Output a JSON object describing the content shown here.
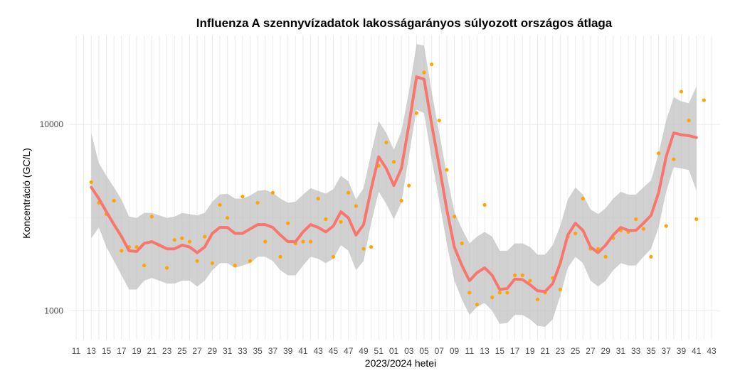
{
  "chart_data": {
    "type": "line",
    "title": "Influenza A szennyvízadatok lakosságarányos súlyozott országos átlaga",
    "xlabel": "2023/2024 hetei",
    "ylabel": "Koncentráció (GC/L)",
    "y_scale": "log10",
    "ylim": [
      700,
      30000
    ],
    "y_ticks": [
      1000,
      10000
    ],
    "y_tick_labels": [
      "1000",
      "10000"
    ],
    "grid": true,
    "x_tick_labels": [
      "11",
      "13",
      "15",
      "17",
      "19",
      "21",
      "23",
      "25",
      "27",
      "29",
      "31",
      "33",
      "35",
      "37",
      "39",
      "41",
      "43",
      "45",
      "47",
      "49",
      "51",
      "01",
      "03",
      "05",
      "07",
      "09",
      "11",
      "13",
      "15",
      "17",
      "19",
      "21",
      "23",
      "25",
      "27",
      "29",
      "31",
      "33",
      "35",
      "37",
      "39",
      "41",
      "43"
    ],
    "weeks": [
      "11",
      "12",
      "13",
      "14",
      "15",
      "16",
      "17",
      "18",
      "19",
      "20",
      "21",
      "22",
      "23",
      "24",
      "25",
      "26",
      "27",
      "28",
      "29",
      "30",
      "31",
      "32",
      "33",
      "34",
      "35",
      "36",
      "37",
      "38",
      "39",
      "40",
      "41",
      "42",
      "43",
      "44",
      "45",
      "46",
      "47",
      "48",
      "49",
      "50",
      "51",
      "52",
      "01",
      "02",
      "03",
      "04",
      "05",
      "06",
      "07",
      "08",
      "09",
      "10",
      "11",
      "12",
      "13",
      "14",
      "15",
      "16",
      "17",
      "18",
      "19",
      "20",
      "21",
      "22",
      "23",
      "24",
      "25",
      "26",
      "27",
      "28",
      "29",
      "30",
      "31",
      "32",
      "33",
      "34",
      "35",
      "36",
      "37",
      "38",
      "39",
      "40",
      "41",
      "42",
      "43"
    ],
    "series": [
      {
        "kind": "points",
        "color": "#FFA500",
        "points": [
          [
            "13",
            4900
          ],
          [
            "14",
            3800
          ],
          [
            "15",
            3300
          ],
          [
            "16",
            3900
          ],
          [
            "17",
            2100
          ],
          [
            "18",
            2200
          ],
          [
            "19",
            2200
          ],
          [
            "20",
            1750
          ],
          [
            "21",
            3200
          ],
          [
            "22",
            2250
          ],
          [
            "23",
            1700
          ],
          [
            "24",
            2400
          ],
          [
            "25",
            2450
          ],
          [
            "26",
            2350
          ],
          [
            "27",
            1850
          ],
          [
            "28",
            2500
          ],
          [
            "29",
            1800
          ],
          [
            "30",
            3700
          ],
          [
            "31",
            3150
          ],
          [
            "32",
            1750
          ],
          [
            "33",
            4100
          ],
          [
            "34",
            1850
          ],
          [
            "35",
            3800
          ],
          [
            "36",
            2350
          ],
          [
            "37",
            4300
          ],
          [
            "38",
            1950
          ],
          [
            "39",
            2950
          ],
          [
            "40",
            2300
          ],
          [
            "41",
            2350
          ],
          [
            "42",
            2350
          ],
          [
            "43",
            4000
          ],
          [
            "44",
            3100
          ],
          [
            "45",
            1950
          ],
          [
            "46",
            3000
          ],
          [
            "47",
            4300
          ],
          [
            "48",
            3650
          ],
          [
            "49",
            2150
          ],
          [
            "50",
            2200
          ],
          [
            "51",
            6000
          ],
          [
            "52",
            8000
          ],
          [
            "01",
            6300
          ],
          [
            "02",
            3900
          ],
          [
            "03",
            4700
          ],
          [
            "04",
            11500
          ],
          [
            "05",
            19000
          ],
          [
            "06",
            21000
          ],
          [
            "07",
            10500
          ],
          [
            "08",
            5700
          ],
          [
            "09",
            3200
          ],
          [
            "10",
            2300
          ],
          [
            "11",
            1250
          ],
          [
            "12",
            1080
          ],
          [
            "13",
            3700
          ],
          [
            "14",
            1180
          ],
          [
            "15",
            1250
          ],
          [
            "16",
            1250
          ],
          [
            "17",
            1550
          ],
          [
            "18",
            1550
          ],
          [
            "19",
            1450
          ],
          [
            "20",
            1150
          ],
          [
            "21",
            1250
          ],
          [
            "22",
            1500
          ],
          [
            "23",
            1300
          ],
          [
            "24",
            2500
          ],
          [
            "25",
            2600
          ],
          [
            "26",
            4000
          ],
          [
            "27",
            2150
          ],
          [
            "28",
            2150
          ],
          [
            "29",
            1950
          ],
          [
            "30",
            2450
          ],
          [
            "31",
            2700
          ],
          [
            "32",
            2650
          ],
          [
            "33",
            3100
          ],
          [
            "34",
            2750
          ],
          [
            "35",
            1950
          ],
          [
            "36",
            7000
          ],
          [
            "37",
            2850
          ],
          [
            "38",
            6500
          ],
          [
            "39",
            15000
          ],
          [
            "40",
            10500
          ],
          [
            "41",
            3100
          ],
          [
            "42",
            13500
          ]
        ]
      },
      {
        "kind": "smooth",
        "color": "#F8766D",
        "points": [
          [
            "13",
            4600
          ],
          [
            "14",
            4000
          ],
          [
            "15",
            3400
          ],
          [
            "16",
            2900
          ],
          [
            "17",
            2500
          ],
          [
            "18",
            2100
          ],
          [
            "19",
            2080
          ],
          [
            "20",
            2300
          ],
          [
            "21",
            2350
          ],
          [
            "22",
            2250
          ],
          [
            "23",
            2150
          ],
          [
            "24",
            2150
          ],
          [
            "25",
            2250
          ],
          [
            "26",
            2200
          ],
          [
            "27",
            2050
          ],
          [
            "28",
            2200
          ],
          [
            "29",
            2600
          ],
          [
            "30",
            2800
          ],
          [
            "31",
            2800
          ],
          [
            "32",
            2600
          ],
          [
            "33",
            2600
          ],
          [
            "34",
            2750
          ],
          [
            "35",
            2900
          ],
          [
            "36",
            2900
          ],
          [
            "37",
            2800
          ],
          [
            "38",
            2550
          ],
          [
            "39",
            2350
          ],
          [
            "40",
            2350
          ],
          [
            "41",
            2650
          ],
          [
            "42",
            2900
          ],
          [
            "43",
            2800
          ],
          [
            "44",
            2650
          ],
          [
            "45",
            2850
          ],
          [
            "46",
            3400
          ],
          [
            "47",
            3150
          ],
          [
            "48",
            2550
          ],
          [
            "49",
            2900
          ],
          [
            "50",
            4500
          ],
          [
            "51",
            6700
          ],
          [
            "52",
            5800
          ],
          [
            "01",
            4700
          ],
          [
            "02",
            5800
          ],
          [
            "03",
            10000
          ],
          [
            "04",
            18000
          ],
          [
            "05",
            17500
          ],
          [
            "06",
            10000
          ],
          [
            "07",
            6000
          ],
          [
            "08",
            3500
          ],
          [
            "09",
            2200
          ],
          [
            "10",
            1750
          ],
          [
            "11",
            1450
          ],
          [
            "12",
            1600
          ],
          [
            "13",
            1700
          ],
          [
            "14",
            1550
          ],
          [
            "15",
            1300
          ],
          [
            "16",
            1320
          ],
          [
            "17",
            1480
          ],
          [
            "18",
            1470
          ],
          [
            "19",
            1380
          ],
          [
            "20",
            1280
          ],
          [
            "21",
            1270
          ],
          [
            "22",
            1400
          ],
          [
            "23",
            1800
          ],
          [
            "24",
            2550
          ],
          [
            "25",
            2950
          ],
          [
            "26",
            2700
          ],
          [
            "27",
            2200
          ],
          [
            "28",
            2050
          ],
          [
            "29",
            2250
          ],
          [
            "30",
            2550
          ],
          [
            "31",
            2800
          ],
          [
            "32",
            2700
          ],
          [
            "33",
            2700
          ],
          [
            "34",
            2950
          ],
          [
            "35",
            3250
          ],
          [
            "36",
            4300
          ],
          [
            "37",
            6700
          ],
          [
            "38",
            9000
          ],
          [
            "39",
            8800
          ],
          [
            "40",
            8700
          ],
          [
            "41",
            8500
          ]
        ]
      },
      {
        "kind": "ribbon",
        "color": "#BEBEBE",
        "points": [
          [
            "13",
            2450,
            9000
          ],
          [
            "14",
            2800,
            6200
          ],
          [
            "15",
            2200,
            5300
          ],
          [
            "16",
            1850,
            4600
          ],
          [
            "17",
            1550,
            3950
          ],
          [
            "18",
            1300,
            3200
          ],
          [
            "19",
            1300,
            3150
          ],
          [
            "20",
            1450,
            3350
          ],
          [
            "21",
            1500,
            3350
          ],
          [
            "22",
            1450,
            3250
          ],
          [
            "23",
            1400,
            3150
          ],
          [
            "24",
            1400,
            3200
          ],
          [
            "25",
            1450,
            3350
          ],
          [
            "26",
            1450,
            3300
          ],
          [
            "27",
            1350,
            3250
          ],
          [
            "28",
            1450,
            3350
          ],
          [
            "29",
            1650,
            3850
          ],
          [
            "30",
            1800,
            4200
          ],
          [
            "31",
            1800,
            4250
          ],
          [
            "32",
            1700,
            4000
          ],
          [
            "33",
            1750,
            4000
          ],
          [
            "34",
            1800,
            4150
          ],
          [
            "35",
            1950,
            4400
          ],
          [
            "36",
            1950,
            4450
          ],
          [
            "37",
            1850,
            4300
          ],
          [
            "38",
            1650,
            4000
          ],
          [
            "39",
            1550,
            3800
          ],
          [
            "40",
            1550,
            3850
          ],
          [
            "41",
            1750,
            4200
          ],
          [
            "42",
            1950,
            4550
          ],
          [
            "43",
            1900,
            4400
          ],
          [
            "44",
            1800,
            4250
          ],
          [
            "45",
            1900,
            4500
          ],
          [
            "46",
            2250,
            5300
          ],
          [
            "47",
            2100,
            4950
          ],
          [
            "48",
            1650,
            3950
          ],
          [
            "49",
            1850,
            4550
          ],
          [
            "50",
            2950,
            7000
          ],
          [
            "51",
            4350,
            10400
          ],
          [
            "52",
            3750,
            9000
          ],
          [
            "01",
            3100,
            7300
          ],
          [
            "02",
            3800,
            9200
          ],
          [
            "03",
            6800,
            15000
          ],
          [
            "04",
            12000,
            27000
          ],
          [
            "05",
            11500,
            26500
          ],
          [
            "06",
            6500,
            15000
          ],
          [
            "07",
            3900,
            9000
          ],
          [
            "08",
            2300,
            5400
          ],
          [
            "09",
            1450,
            3400
          ],
          [
            "10",
            1150,
            2750
          ],
          [
            "11",
            950,
            2300
          ],
          [
            "12",
            1050,
            2500
          ],
          [
            "13",
            1100,
            2650
          ],
          [
            "14",
            1000,
            2500
          ],
          [
            "15",
            850,
            2100
          ],
          [
            "16",
            860,
            2100
          ],
          [
            "17",
            950,
            2300
          ],
          [
            "18",
            950,
            2300
          ],
          [
            "19",
            900,
            2200
          ],
          [
            "20",
            830,
            2000
          ],
          [
            "21",
            820,
            2000
          ],
          [
            "22",
            900,
            2250
          ],
          [
            "23",
            1200,
            2850
          ],
          [
            "24",
            1700,
            3950
          ],
          [
            "25",
            1950,
            4600
          ],
          [
            "26",
            1800,
            4200
          ],
          [
            "27",
            1450,
            3500
          ],
          [
            "28",
            1350,
            3300
          ],
          [
            "29",
            1450,
            3550
          ],
          [
            "30",
            1650,
            4000
          ],
          [
            "31",
            1800,
            4350
          ],
          [
            "32",
            1750,
            4200
          ],
          [
            "33",
            1750,
            4200
          ],
          [
            "34",
            1950,
            4600
          ],
          [
            "35",
            2150,
            5000
          ],
          [
            "36",
            2800,
            7000
          ],
          [
            "37",
            4350,
            10500
          ],
          [
            "38",
            5900,
            14000
          ],
          [
            "39",
            5800,
            13300
          ],
          [
            "40",
            5700,
            13000
          ],
          [
            "41",
            4400,
            16000
          ]
        ]
      }
    ]
  }
}
